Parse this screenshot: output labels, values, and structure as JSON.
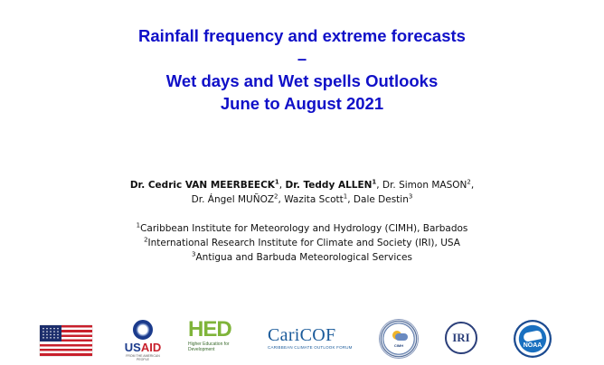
{
  "title": {
    "line1": "Rainfall frequency and extreme forecasts",
    "line2": "–",
    "line3": "Wet days and Wet spells Outlooks",
    "line4": "June to August 2021"
  },
  "authors": [
    {
      "name": "Dr. Cedric VAN MEERBEECK",
      "sup": "1",
      "bold": true,
      "sep": ", "
    },
    {
      "name": "Dr. Teddy ALLEN",
      "sup": "1",
      "bold": true,
      "sep": ", "
    },
    {
      "name": "Dr. Simon MASON",
      "sup": "2",
      "bold": false,
      "sep": ","
    },
    {
      "name": "Dr. Ángel MUÑOZ",
      "sup": "2",
      "bold": false,
      "sep": ", "
    },
    {
      "name": "Wazita Scott",
      "sup": "1",
      "bold": false,
      "sep": ", "
    },
    {
      "name": "Dale Destin",
      "sup": "3",
      "bold": false,
      "sep": ""
    }
  ],
  "affiliations": [
    {
      "sup": "1",
      "text": "Caribbean Institute for Meteorology and Hydrology (CIMH), Barbados"
    },
    {
      "sup": "2",
      "text": "International Research Institute for Climate and Society (IRI), USA"
    },
    {
      "sup": "3",
      "text": "Antigua and Barbuda Meteorological Services"
    }
  ],
  "logos": {
    "usaid": {
      "us": "US",
      "aid": "AID",
      "tagline": "FROM THE AMERICAN PEOPLE"
    },
    "hed": {
      "text": "HED",
      "tagline": "Higher Education for Development"
    },
    "caricof": {
      "text": "CariCOF",
      "tagline": "CARIBBEAN CLIMATE OUTLOOK FORUM"
    },
    "cimh": {
      "text": "CIMH"
    },
    "iri": {
      "text": "IRI"
    },
    "noaa": {
      "text": "NOAA"
    }
  }
}
